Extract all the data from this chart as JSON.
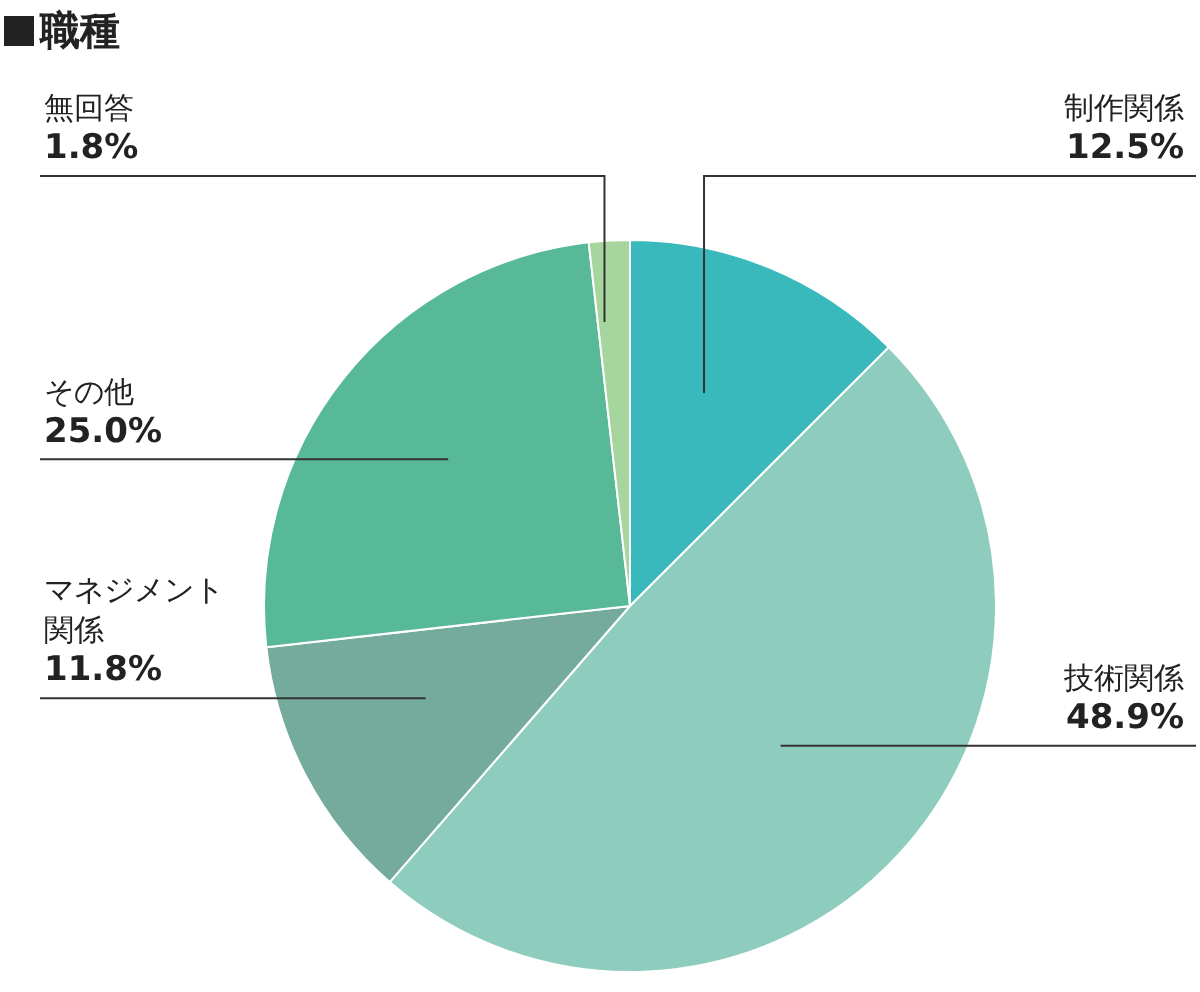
{
  "chart_data": {
    "type": "pie",
    "title": "職種",
    "categories": [
      "制作関係",
      "技術関係",
      "マネジメント関係",
      "その他",
      "無回答"
    ],
    "values": [
      12.5,
      48.9,
      11.8,
      25.0,
      1.8
    ],
    "value_labels": [
      "12.5%",
      "48.9%",
      "11.8%",
      "25.0%",
      "1.8%"
    ],
    "colors": [
      "#3ab9bd",
      "#8ecdbd",
      "#74ab9c",
      "#58b998",
      "#a6d59d"
    ]
  }
}
